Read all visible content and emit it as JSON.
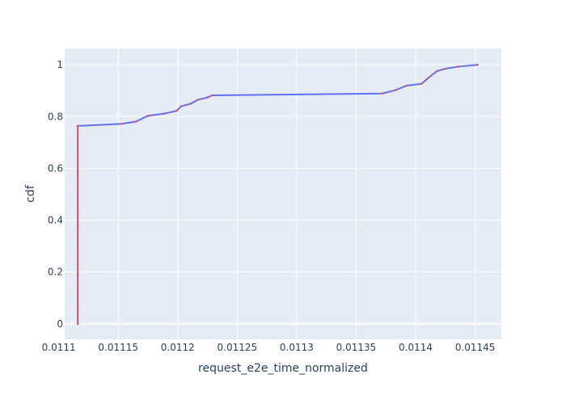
{
  "chart_data": {
    "type": "line",
    "xlabel": "request_e2e_time_normalized",
    "ylabel": "cdf",
    "xlim": [
      0.011105,
      0.011472
    ],
    "ylim": [
      -0.06,
      1.063
    ],
    "x_ticks": [
      0.0111,
      0.01115,
      0.0112,
      0.01125,
      0.0113,
      0.01135,
      0.0114,
      0.01145
    ],
    "x_tick_labels": [
      "0.0111",
      "0.01115",
      "0.0112",
      "0.01125",
      "0.0113",
      "0.01135",
      "0.0114",
      "0.01145"
    ],
    "y_ticks": [
      0,
      0.2,
      0.4,
      0.6,
      0.8,
      1
    ],
    "y_tick_labels": [
      "0",
      "0.2",
      "0.4",
      "0.6",
      "0.8",
      "1"
    ],
    "grid": true,
    "colors": {
      "plot_bg": "#e5ecf6",
      "grid": "#ffffff",
      "line": "#636efa",
      "markers": "#ef553b"
    },
    "series": [
      {
        "x": [
          0.011116,
          0.011116,
          0.011116,
          0.011153,
          0.011165,
          0.011175,
          0.011189,
          0.011199,
          0.011203,
          0.011211,
          0.011217,
          0.011225,
          0.011229,
          0.011372,
          0.011383,
          0.011392,
          0.011405,
          0.011409,
          0.011413,
          0.011418,
          0.011425,
          0.011436,
          0.011452
        ],
        "y": [
          0.0,
          0.38,
          0.764,
          0.772,
          0.781,
          0.803,
          0.812,
          0.822,
          0.84,
          0.85,
          0.865,
          0.874,
          0.882,
          0.889,
          0.902,
          0.919,
          0.927,
          0.943,
          0.958,
          0.976,
          0.985,
          0.993,
          1.0
        ]
      }
    ]
  }
}
